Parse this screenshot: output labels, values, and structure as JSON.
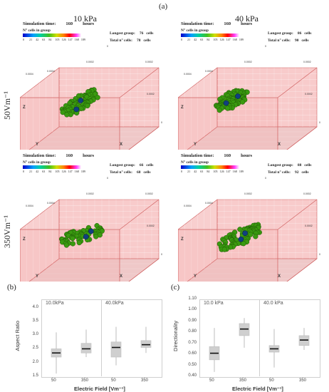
{
  "figure": {
    "panel_a": "(a)",
    "panel_b": "(b)",
    "panel_c": "(c)",
    "col_left": "10 kPa",
    "col_right": "40 kPa",
    "row_top": "50Vm⁻¹",
    "row_bottom": "350Vm⁻¹"
  },
  "sim_common": {
    "sim_label": "Simulation time:",
    "sim_value": "160",
    "sim_unit": "hours",
    "ncells_label": "N° cells in group",
    "colorbar_ticks": [
      "0",
      "21",
      "42",
      "63",
      "84",
      "105",
      "126",
      "147",
      "168",
      "189"
    ],
    "longest_label": "Longest group:",
    "total_label": "Total n° cells:",
    "cells_unit": "cells",
    "axis_x": "X",
    "axis_y": "Y",
    "axis_z": "Z",
    "num_0": "0",
    "num_a": "0.0004",
    "num_b": "0.0002",
    "colors": {
      "box_fill": "#f2a0a0",
      "box_edge": "#d06060",
      "cell": "#3a9a10",
      "cell_dark": "#104080"
    }
  },
  "sims": [
    {
      "longest": "76",
      "total": "78"
    },
    {
      "longest": "86",
      "total": "90"
    },
    {
      "longest": "66",
      "total": "68"
    },
    {
      "longest": "88",
      "total": "92"
    }
  ],
  "chart_data": [
    {
      "type": "box",
      "title_groups": [
        "10.0kPa",
        "40.0kPa"
      ],
      "categories": [
        "50",
        "350",
        "50",
        "350"
      ],
      "xlabel": "Electric Field [Vm⁻¹]",
      "ylabel": "Aspect Ratio",
      "yticks": [
        "1.5",
        "2.0",
        "2.5",
        "3.0",
        "3.5",
        "4.0"
      ],
      "ylim": [
        1.5,
        4.3
      ],
      "boxes": [
        {
          "min": 1.6,
          "q1": 2.2,
          "median": 2.35,
          "q3": 2.5,
          "max": 3.1
        },
        {
          "min": 2.2,
          "q1": 2.35,
          "median": 2.5,
          "q3": 2.7,
          "max": 3.2
        },
        {
          "min": 1.9,
          "q1": 2.2,
          "median": 2.55,
          "q3": 2.75,
          "max": 3.3
        },
        {
          "min": 2.35,
          "q1": 2.55,
          "median": 2.65,
          "q3": 2.8,
          "max": 3.3
        }
      ]
    },
    {
      "type": "box",
      "title_groups": [
        "10.0 kPa",
        "40.0 kPa"
      ],
      "categories": [
        "50",
        "350",
        "50",
        "350"
      ],
      "xlabel": "Electric Field [Vm⁻¹]",
      "ylabel": "Directionality",
      "yticks": [
        "0.40",
        "0.50",
        "0.60",
        "0.70",
        "0.80",
        "0.90",
        "1.00",
        "1.10"
      ],
      "ylim": [
        0.4,
        1.1
      ],
      "boxes": [
        {
          "min": 0.44,
          "q1": 0.55,
          "median": 0.61,
          "q3": 0.67,
          "max": 0.84
        },
        {
          "min": 0.66,
          "q1": 0.77,
          "median": 0.83,
          "q3": 0.88,
          "max": 0.93
        },
        {
          "min": 0.48,
          "q1": 0.62,
          "median": 0.65,
          "q3": 0.68,
          "max": 0.83
        },
        {
          "min": 0.64,
          "q1": 0.68,
          "median": 0.73,
          "q3": 0.77,
          "max": 0.84
        }
      ]
    }
  ]
}
